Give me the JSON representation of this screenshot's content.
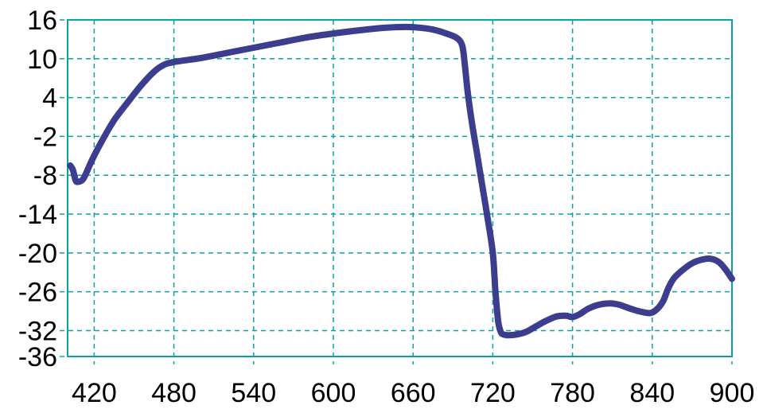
{
  "chart_data": {
    "type": "line",
    "title": "",
    "xlabel": "",
    "ylabel": "",
    "xlim": [
      400,
      900
    ],
    "ylim": [
      -36,
      16
    ],
    "x_ticks": [
      420,
      480,
      540,
      600,
      660,
      720,
      780,
      840,
      900
    ],
    "y_ticks": [
      16,
      10,
      4,
      -2,
      -8,
      -14,
      -20,
      -26,
      -32,
      -36
    ],
    "grid": true,
    "legend": "none",
    "colors": {
      "line": "#3d3d8f",
      "grid": "#0aa3a3",
      "frame": "#0aa3a3",
      "text": "#000000"
    },
    "series": [
      {
        "x": [
          402,
          404,
          406,
          408,
          412,
          418,
          425,
          435,
          445,
          455,
          465,
          472,
          480,
          500,
          520,
          540,
          560,
          580,
          600,
          620,
          640,
          655,
          665,
          675,
          685,
          693,
          697,
          699,
          701,
          704,
          708,
          712,
          716,
          720,
          722,
          724,
          726,
          728,
          732,
          738,
          745,
          752,
          760,
          768,
          775,
          780,
          785,
          792,
          800,
          808,
          815,
          822,
          830,
          838,
          843,
          848,
          852,
          856,
          862,
          870,
          878,
          884,
          890,
          895,
          900
        ],
        "y": [
          -6.5,
          -7.2,
          -8.8,
          -9.0,
          -8.5,
          -5.8,
          -3.0,
          0.5,
          3.2,
          5.8,
          8.0,
          9.0,
          9.5,
          10.1,
          10.9,
          11.7,
          12.5,
          13.3,
          13.9,
          14.4,
          14.8,
          14.9,
          14.8,
          14.5,
          13.9,
          13.2,
          12.0,
          9.0,
          5.0,
          0.5,
          -4.5,
          -9.5,
          -14.5,
          -20.0,
          -26.0,
          -30.5,
          -32.2,
          -32.6,
          -32.7,
          -32.6,
          -32.2,
          -31.4,
          -30.5,
          -29.8,
          -29.7,
          -29.9,
          -29.5,
          -28.6,
          -28.0,
          -27.8,
          -28.0,
          -28.5,
          -29.0,
          -29.3,
          -28.8,
          -27.5,
          -25.5,
          -24.0,
          -22.8,
          -21.6,
          -21.0,
          -20.9,
          -21.4,
          -22.5,
          -24.0
        ]
      }
    ]
  }
}
